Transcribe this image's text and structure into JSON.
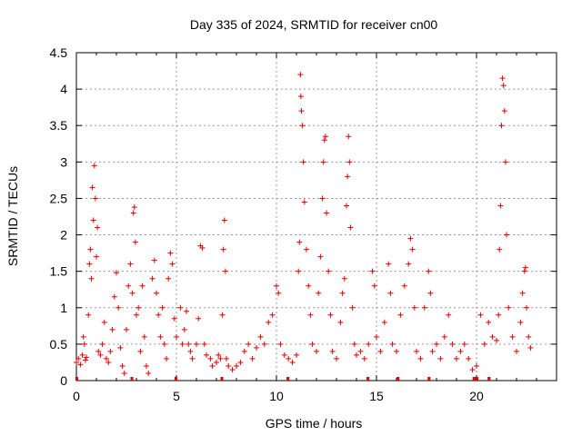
{
  "chart_data": {
    "type": "scatter",
    "title": "Day 335 of 2024, SRMTID for receiver cn00",
    "xlabel": "GPS time / hours",
    "ylabel": "SRMTID / TECUs",
    "xlim": [
      0,
      24
    ],
    "ylim": [
      0,
      4.5
    ],
    "grid": true,
    "marker": "+",
    "series_color": "#e00000",
    "xticks": [
      0,
      5,
      10,
      15,
      20
    ],
    "yticks": [
      0,
      0.5,
      1,
      1.5,
      2,
      2.5,
      3,
      3.5,
      4,
      4.5
    ],
    "xtick_labels": [
      "0",
      "5",
      "10",
      "15",
      "20"
    ],
    "ytick_labels": [
      "0",
      "0.5",
      "1",
      "1.5",
      "2",
      "2.5",
      "3",
      "3.5",
      "4",
      "4.5"
    ],
    "series": [
      {
        "name": "cn00",
        "points": [
          [
            0.0,
            0.25
          ],
          [
            0.1,
            0.3
          ],
          [
            0.2,
            0.22
          ],
          [
            0.3,
            0.35
          ],
          [
            0.35,
            0.6
          ],
          [
            0.4,
            0.5
          ],
          [
            0.45,
            0.28
          ],
          [
            0.5,
            0.32
          ],
          [
            0.6,
            0.9
          ],
          [
            0.65,
            1.6
          ],
          [
            0.7,
            1.8
          ],
          [
            0.75,
            1.4
          ],
          [
            0.8,
            2.65
          ],
          [
            0.85,
            2.2
          ],
          [
            0.9,
            2.95
          ],
          [
            0.95,
            2.5
          ],
          [
            1.0,
            1.7
          ],
          [
            1.05,
            2.1
          ],
          [
            1.1,
            0.4
          ],
          [
            1.2,
            0.35
          ],
          [
            1.3,
            0.5
          ],
          [
            1.4,
            0.8
          ],
          [
            1.5,
            0.3
          ],
          [
            1.6,
            0.25
          ],
          [
            1.7,
            0.4
          ],
          [
            1.8,
            0.7
          ],
          [
            1.9,
            1.15
          ],
          [
            2.0,
            1.48
          ],
          [
            2.1,
            1.0
          ],
          [
            2.2,
            0.45
          ],
          [
            2.3,
            0.2
          ],
          [
            2.4,
            0.1
          ],
          [
            2.5,
            0.7
          ],
          [
            2.6,
            1.3
          ],
          [
            2.7,
            1.6
          ],
          [
            2.8,
            1.2
          ],
          [
            2.85,
            2.3
          ],
          [
            2.9,
            2.38
          ],
          [
            2.95,
            1.9
          ],
          [
            3.0,
            0.9
          ],
          [
            3.1,
            1.0
          ],
          [
            3.2,
            0.4
          ],
          [
            3.3,
            1.3
          ],
          [
            3.4,
            0.6
          ],
          [
            3.5,
            0.2
          ],
          [
            3.6,
            0.1
          ],
          [
            3.8,
            1.4
          ],
          [
            3.9,
            1.65
          ],
          [
            4.0,
            1.2
          ],
          [
            4.1,
            0.9
          ],
          [
            4.2,
            0.6
          ],
          [
            4.3,
            1.0
          ],
          [
            4.4,
            0.5
          ],
          [
            4.5,
            0.3
          ],
          [
            4.6,
            1.4
          ],
          [
            4.7,
            1.75
          ],
          [
            4.8,
            1.6
          ],
          [
            4.9,
            0.85
          ],
          [
            5.0,
            0.6
          ],
          [
            5.2,
            1.0
          ],
          [
            5.3,
            0.5
          ],
          [
            5.4,
            0.7
          ],
          [
            5.5,
            0.95
          ],
          [
            5.6,
            0.5
          ],
          [
            5.7,
            0.4
          ],
          [
            5.8,
            0.3
          ],
          [
            6.0,
            0.5
          ],
          [
            6.1,
            0.85
          ],
          [
            6.2,
            1.85
          ],
          [
            6.3,
            1.82
          ],
          [
            6.4,
            0.5
          ],
          [
            6.5,
            0.35
          ],
          [
            6.7,
            0.3
          ],
          [
            6.8,
            0.2
          ],
          [
            7.0,
            0.25
          ],
          [
            7.1,
            0.35
          ],
          [
            7.2,
            0.3
          ],
          [
            7.3,
            0.9
          ],
          [
            7.35,
            1.8
          ],
          [
            7.4,
            2.2
          ],
          [
            7.45,
            1.5
          ],
          [
            7.5,
            0.3
          ],
          [
            7.6,
            0.2
          ],
          [
            7.8,
            0.15
          ],
          [
            8.0,
            0.2
          ],
          [
            8.2,
            0.25
          ],
          [
            8.4,
            0.4
          ],
          [
            8.6,
            0.5
          ],
          [
            8.8,
            0.3
          ],
          [
            9.0,
            0.45
          ],
          [
            9.2,
            0.6
          ],
          [
            9.4,
            0.5
          ],
          [
            9.6,
            0.8
          ],
          [
            9.8,
            0.9
          ],
          [
            10.0,
            1.3
          ],
          [
            10.1,
            1.2
          ],
          [
            10.2,
            0.5
          ],
          [
            10.4,
            0.35
          ],
          [
            10.6,
            0.3
          ],
          [
            10.8,
            0.25
          ],
          [
            11.0,
            0.35
          ],
          [
            11.1,
            1.5
          ],
          [
            11.15,
            1.9
          ],
          [
            11.2,
            4.2
          ],
          [
            11.22,
            3.9
          ],
          [
            11.25,
            3.7
          ],
          [
            11.3,
            3.5
          ],
          [
            11.35,
            3.0
          ],
          [
            11.4,
            2.45
          ],
          [
            11.5,
            1.8
          ],
          [
            11.6,
            1.3
          ],
          [
            11.7,
            0.9
          ],
          [
            11.8,
            0.5
          ],
          [
            12.0,
            0.4
          ],
          [
            12.1,
            1.2
          ],
          [
            12.2,
            1.7
          ],
          [
            12.3,
            2.5
          ],
          [
            12.35,
            3.0
          ],
          [
            12.4,
            3.3
          ],
          [
            12.45,
            3.35
          ],
          [
            12.5,
            2.3
          ],
          [
            12.6,
            1.5
          ],
          [
            12.7,
            0.9
          ],
          [
            12.8,
            0.4
          ],
          [
            13.0,
            0.3
          ],
          [
            13.2,
            0.8
          ],
          [
            13.3,
            1.2
          ],
          [
            13.4,
            1.4
          ],
          [
            13.5,
            2.4
          ],
          [
            13.55,
            2.8
          ],
          [
            13.6,
            3.35
          ],
          [
            13.65,
            3.0
          ],
          [
            13.7,
            2.1
          ],
          [
            13.8,
            1.0
          ],
          [
            13.9,
            0.5
          ],
          [
            14.0,
            0.35
          ],
          [
            14.2,
            0.4
          ],
          [
            14.4,
            0.3
          ],
          [
            14.6,
            0.5
          ],
          [
            14.8,
            1.5
          ],
          [
            14.9,
            1.3
          ],
          [
            15.0,
            0.6
          ],
          [
            15.2,
            0.4
          ],
          [
            15.4,
            0.8
          ],
          [
            15.6,
            1.6
          ],
          [
            15.7,
            1.2
          ],
          [
            15.8,
            0.5
          ],
          [
            16.0,
            0.4
          ],
          [
            16.2,
            0.9
          ],
          [
            16.4,
            1.3
          ],
          [
            16.6,
            1.6
          ],
          [
            16.7,
            1.95
          ],
          [
            16.8,
            1.8
          ],
          [
            16.9,
            1.0
          ],
          [
            17.0,
            0.4
          ],
          [
            17.2,
            0.3
          ],
          [
            17.4,
            1.0
          ],
          [
            17.6,
            1.5
          ],
          [
            17.7,
            1.2
          ],
          [
            17.8,
            0.4
          ],
          [
            18.0,
            0.5
          ],
          [
            18.2,
            0.3
          ],
          [
            18.4,
            0.6
          ],
          [
            18.6,
            0.9
          ],
          [
            18.8,
            0.5
          ],
          [
            19.0,
            0.3
          ],
          [
            19.2,
            0.4
          ],
          [
            19.4,
            0.5
          ],
          [
            19.6,
            0.3
          ],
          [
            19.8,
            0.15
          ],
          [
            20.0,
            0.2
          ],
          [
            20.2,
            0.9
          ],
          [
            20.4,
            0.5
          ],
          [
            20.6,
            0.8
          ],
          [
            20.8,
            0.6
          ],
          [
            21.0,
            0.55
          ],
          [
            21.1,
            0.9
          ],
          [
            21.15,
            1.8
          ],
          [
            21.2,
            2.4
          ],
          [
            21.25,
            3.5
          ],
          [
            21.3,
            4.15
          ],
          [
            21.35,
            4.05
          ],
          [
            21.4,
            3.7
          ],
          [
            21.45,
            3.0
          ],
          [
            21.5,
            2.0
          ],
          [
            21.6,
            1.0
          ],
          [
            21.8,
            0.6
          ],
          [
            22.0,
            0.4
          ],
          [
            22.2,
            0.8
          ],
          [
            22.3,
            1.2
          ],
          [
            22.4,
            1.5
          ],
          [
            22.45,
            1.55
          ],
          [
            22.5,
            1.0
          ],
          [
            22.6,
            0.6
          ],
          [
            22.7,
            0.45
          ]
        ]
      }
    ],
    "zero_segments": [
      [
        0.0,
        0.03
      ],
      [
        2.75,
        2.78
      ],
      [
        4.95,
        5.0
      ],
      [
        7.25,
        7.3
      ],
      [
        10.55,
        10.6
      ],
      [
        14.55,
        14.6
      ],
      [
        16.05,
        16.1
      ],
      [
        17.6,
        17.65
      ],
      [
        19.85,
        20.05
      ],
      [
        20.6,
        20.65
      ]
    ]
  }
}
